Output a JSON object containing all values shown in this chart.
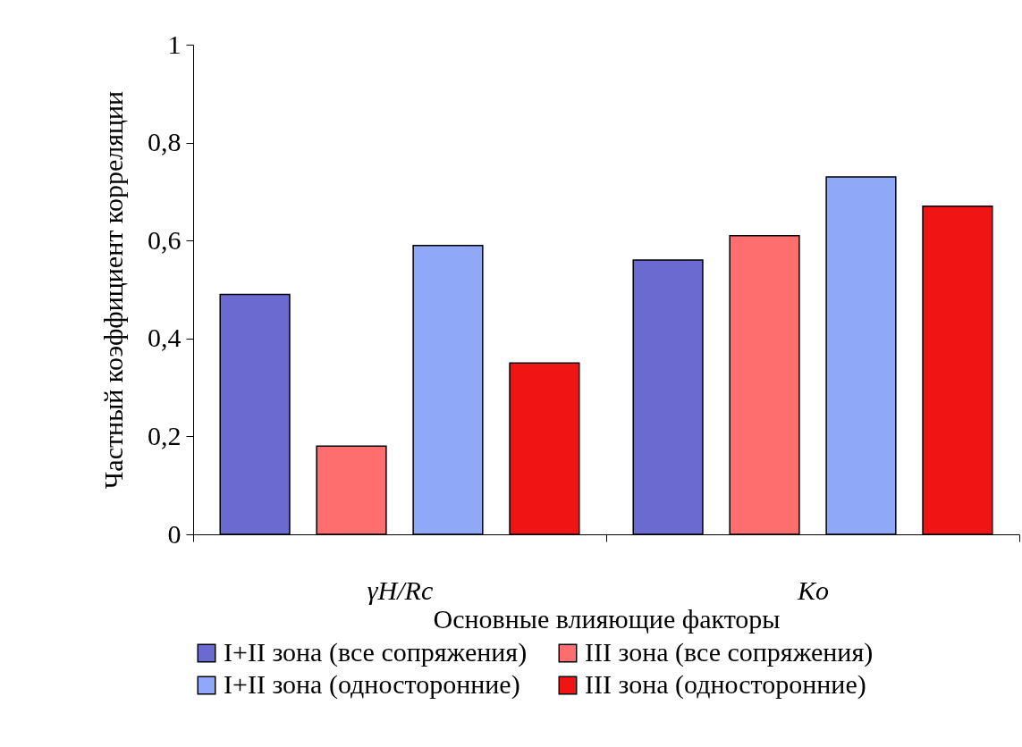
{
  "chart_data": {
    "type": "bar",
    "xlabel": "Основные влияющие факторы",
    "ylabel": "Частный коэффициент корреляции",
    "categories": [
      "γH/Rc",
      "Ko"
    ],
    "series": [
      {
        "name": "I+II зона (все сопряжения)",
        "color": "#6a6ad0",
        "values": [
          0.49,
          0.56
        ]
      },
      {
        "name": "III зона (все сопряжения)",
        "color": "#ff6e6e",
        "values": [
          0.18,
          0.61
        ]
      },
      {
        "name": "I+II зона (односторонние)",
        "color": "#90a8f8",
        "values": [
          0.59,
          0.73
        ]
      },
      {
        "name": "III зона (односторонние)",
        "color": "#f01414",
        "values": [
          0.35,
          0.67
        ]
      }
    ],
    "ylim": [
      0,
      1
    ],
    "yticks": [
      0,
      {
        "value": 0.2,
        "label": "0,2"
      },
      {
        "value": 0.4,
        "label": "0,4"
      },
      {
        "value": 0.6,
        "label": "0,6"
      },
      {
        "value": 0.8,
        "label": "0,8"
      },
      1
    ],
    "grid": false,
    "legend": "bottom"
  }
}
